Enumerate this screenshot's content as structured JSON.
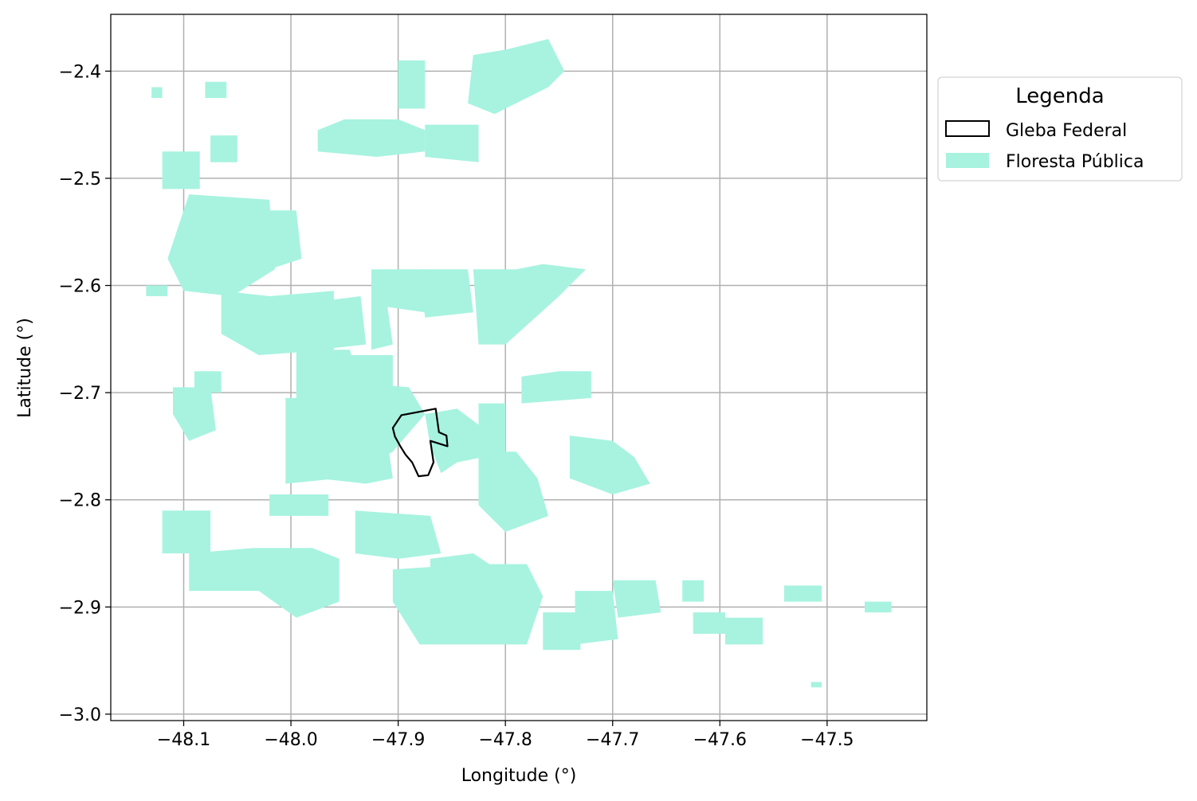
{
  "map": {
    "xlabel": "Longitude (°)",
    "ylabel": "Latitude (°)",
    "xlim": [
      -48.168,
      -47.407
    ],
    "ylim": [
      -3.006,
      -2.347
    ],
    "grid": true,
    "xticks": [
      -48.1,
      -48.0,
      -47.9,
      -47.8,
      -47.7,
      -47.6,
      -47.5
    ],
    "xtick_labels": [
      "−48.1",
      "−48.0",
      "−47.9",
      "−47.8",
      "−47.7",
      "−47.6",
      "−47.5"
    ],
    "yticks": [
      -2.4,
      -2.5,
      -2.6,
      -2.7,
      -2.8,
      -2.9,
      -3.0
    ],
    "ytick_labels": [
      "−2.4",
      "−2.5",
      "−2.6",
      "−2.7",
      "−2.8",
      "−2.9",
      "−3.0"
    ]
  },
  "legend": {
    "title": "Legenda",
    "placement": "outside-upper-right",
    "items": [
      {
        "label": "Gleba Federal",
        "style": "outline",
        "color": "#000000"
      },
      {
        "label": "Floresta Pública",
        "style": "fill",
        "color": "#a7f3e0"
      }
    ]
  },
  "layers": [
    {
      "name": "Floresta Pública",
      "fill": "#a7f3e0",
      "polygons": [
        [
          [
            -47.9,
            -2.39
          ],
          [
            -47.875,
            -2.39
          ],
          [
            -47.875,
            -2.435
          ],
          [
            -47.9,
            -2.435
          ]
        ],
        [
          [
            -47.83,
            -2.385
          ],
          [
            -47.8,
            -2.38
          ],
          [
            -47.76,
            -2.37
          ],
          [
            -47.745,
            -2.4
          ],
          [
            -47.76,
            -2.415
          ],
          [
            -47.81,
            -2.44
          ],
          [
            -47.835,
            -2.43
          ]
        ],
        [
          [
            -47.95,
            -2.445
          ],
          [
            -47.9,
            -2.445
          ],
          [
            -47.875,
            -2.455
          ],
          [
            -47.875,
            -2.475
          ],
          [
            -47.92,
            -2.48
          ],
          [
            -47.975,
            -2.475
          ],
          [
            -47.975,
            -2.455
          ]
        ],
        [
          [
            -47.875,
            -2.45
          ],
          [
            -47.825,
            -2.45
          ],
          [
            -47.825,
            -2.485
          ],
          [
            -47.875,
            -2.48
          ]
        ],
        [
          [
            -48.12,
            -2.475
          ],
          [
            -48.085,
            -2.475
          ],
          [
            -48.085,
            -2.51
          ],
          [
            -48.12,
            -2.51
          ]
        ],
        [
          [
            -48.075,
            -2.46
          ],
          [
            -48.05,
            -2.46
          ],
          [
            -48.05,
            -2.485
          ],
          [
            -48.075,
            -2.485
          ]
        ],
        [
          [
            -48.095,
            -2.515
          ],
          [
            -48.02,
            -2.52
          ],
          [
            -48.015,
            -2.585
          ],
          [
            -48.055,
            -2.61
          ],
          [
            -48.1,
            -2.605
          ],
          [
            -48.115,
            -2.575
          ]
        ],
        [
          [
            -48.025,
            -2.53
          ],
          [
            -47.995,
            -2.53
          ],
          [
            -47.99,
            -2.575
          ],
          [
            -48.02,
            -2.585
          ]
        ],
        [
          [
            -48.065,
            -2.605
          ],
          [
            -48.02,
            -2.61
          ],
          [
            -47.96,
            -2.605
          ],
          [
            -47.96,
            -2.66
          ],
          [
            -48.03,
            -2.665
          ],
          [
            -48.065,
            -2.645
          ]
        ],
        [
          [
            -47.975,
            -2.615
          ],
          [
            -47.935,
            -2.61
          ],
          [
            -47.93,
            -2.655
          ],
          [
            -47.975,
            -2.66
          ]
        ],
        [
          [
            -47.955,
            -2.665
          ],
          [
            -47.905,
            -2.665
          ],
          [
            -47.905,
            -2.71
          ],
          [
            -47.955,
            -2.715
          ]
        ],
        [
          [
            -47.925,
            -2.585
          ],
          [
            -47.875,
            -2.585
          ],
          [
            -47.875,
            -2.625
          ],
          [
            -47.91,
            -2.62
          ],
          [
            -47.905,
            -2.655
          ],
          [
            -47.925,
            -2.66
          ]
        ],
        [
          [
            -47.88,
            -2.585
          ],
          [
            -47.835,
            -2.585
          ],
          [
            -47.83,
            -2.625
          ],
          [
            -47.875,
            -2.63
          ]
        ],
        [
          [
            -47.83,
            -2.585
          ],
          [
            -47.79,
            -2.585
          ],
          [
            -47.765,
            -2.58
          ],
          [
            -47.725,
            -2.585
          ],
          [
            -47.75,
            -2.61
          ],
          [
            -47.8,
            -2.655
          ],
          [
            -47.825,
            -2.655
          ]
        ],
        [
          [
            -47.995,
            -2.66
          ],
          [
            -47.945,
            -2.66
          ],
          [
            -47.935,
            -2.7
          ],
          [
            -47.945,
            -2.745
          ],
          [
            -47.995,
            -2.745
          ]
        ],
        [
          [
            -47.945,
            -2.69
          ],
          [
            -47.89,
            -2.695
          ],
          [
            -47.875,
            -2.72
          ],
          [
            -47.905,
            -2.755
          ],
          [
            -47.94,
            -2.775
          ],
          [
            -47.945,
            -2.73
          ]
        ],
        [
          [
            -47.875,
            -2.72
          ],
          [
            -47.845,
            -2.715
          ],
          [
            -47.825,
            -2.73
          ],
          [
            -47.82,
            -2.76
          ],
          [
            -47.845,
            -2.765
          ],
          [
            -47.86,
            -2.775
          ],
          [
            -47.87,
            -2.75
          ]
        ],
        [
          [
            -47.825,
            -2.71
          ],
          [
            -47.8,
            -2.71
          ],
          [
            -47.8,
            -2.765
          ],
          [
            -47.825,
            -2.765
          ]
        ],
        [
          [
            -47.785,
            -2.685
          ],
          [
            -47.75,
            -2.68
          ],
          [
            -47.72,
            -2.68
          ],
          [
            -47.72,
            -2.705
          ],
          [
            -47.785,
            -2.71
          ]
        ],
        [
          [
            -48.11,
            -2.695
          ],
          [
            -48.075,
            -2.695
          ],
          [
            -48.07,
            -2.735
          ],
          [
            -48.095,
            -2.745
          ],
          [
            -48.11,
            -2.72
          ]
        ],
        [
          [
            -48.09,
            -2.68
          ],
          [
            -48.065,
            -2.68
          ],
          [
            -48.065,
            -2.7
          ],
          [
            -48.09,
            -2.7
          ]
        ],
        [
          [
            -48.005,
            -2.705
          ],
          [
            -47.955,
            -2.705
          ],
          [
            -47.935,
            -2.73
          ],
          [
            -47.935,
            -2.76
          ],
          [
            -47.955,
            -2.78
          ],
          [
            -48.005,
            -2.785
          ]
        ],
        [
          [
            -47.975,
            -2.73
          ],
          [
            -47.935,
            -2.73
          ],
          [
            -47.91,
            -2.745
          ],
          [
            -47.905,
            -2.78
          ],
          [
            -47.93,
            -2.785
          ],
          [
            -47.975,
            -2.78
          ]
        ],
        [
          [
            -47.825,
            -2.755
          ],
          [
            -47.79,
            -2.755
          ],
          [
            -47.77,
            -2.78
          ],
          [
            -47.76,
            -2.815
          ],
          [
            -47.8,
            -2.83
          ],
          [
            -47.825,
            -2.805
          ]
        ],
        [
          [
            -47.74,
            -2.74
          ],
          [
            -47.7,
            -2.745
          ],
          [
            -47.68,
            -2.76
          ],
          [
            -47.665,
            -2.785
          ],
          [
            -47.7,
            -2.795
          ],
          [
            -47.74,
            -2.78
          ]
        ],
        [
          [
            -48.02,
            -2.795
          ],
          [
            -47.965,
            -2.795
          ],
          [
            -47.965,
            -2.815
          ],
          [
            -48.02,
            -2.815
          ]
        ],
        [
          [
            -48.12,
            -2.81
          ],
          [
            -48.075,
            -2.81
          ],
          [
            -48.075,
            -2.85
          ],
          [
            -48.12,
            -2.85
          ]
        ],
        [
          [
            -47.94,
            -2.81
          ],
          [
            -47.87,
            -2.815
          ],
          [
            -47.86,
            -2.85
          ],
          [
            -47.9,
            -2.855
          ],
          [
            -47.94,
            -2.85
          ]
        ],
        [
          [
            -48.095,
            -2.85
          ],
          [
            -48.035,
            -2.845
          ],
          [
            -47.98,
            -2.845
          ],
          [
            -47.955,
            -2.855
          ],
          [
            -47.955,
            -2.895
          ],
          [
            -47.995,
            -2.91
          ],
          [
            -48.03,
            -2.885
          ],
          [
            -48.095,
            -2.885
          ]
        ],
        [
          [
            -47.905,
            -2.865
          ],
          [
            -47.83,
            -2.86
          ],
          [
            -47.78,
            -2.86
          ],
          [
            -47.765,
            -2.89
          ],
          [
            -47.78,
            -2.935
          ],
          [
            -47.835,
            -2.935
          ],
          [
            -47.88,
            -2.935
          ],
          [
            -47.905,
            -2.895
          ]
        ],
        [
          [
            -47.87,
            -2.855
          ],
          [
            -47.83,
            -2.85
          ],
          [
            -47.815,
            -2.86
          ],
          [
            -47.83,
            -2.875
          ],
          [
            -47.87,
            -2.875
          ]
        ],
        [
          [
            -47.735,
            -2.885
          ],
          [
            -47.7,
            -2.885
          ],
          [
            -47.695,
            -2.93
          ],
          [
            -47.735,
            -2.935
          ]
        ],
        [
          [
            -47.765,
            -2.905
          ],
          [
            -47.73,
            -2.905
          ],
          [
            -47.73,
            -2.94
          ],
          [
            -47.765,
            -2.94
          ]
        ],
        [
          [
            -47.7,
            -2.875
          ],
          [
            -47.66,
            -2.875
          ],
          [
            -47.655,
            -2.905
          ],
          [
            -47.695,
            -2.91
          ]
        ],
        [
          [
            -47.635,
            -2.875
          ],
          [
            -47.615,
            -2.875
          ],
          [
            -47.615,
            -2.895
          ],
          [
            -47.635,
            -2.895
          ]
        ],
        [
          [
            -47.625,
            -2.905
          ],
          [
            -47.595,
            -2.905
          ],
          [
            -47.595,
            -2.925
          ],
          [
            -47.625,
            -2.925
          ]
        ],
        [
          [
            -47.595,
            -2.91
          ],
          [
            -47.56,
            -2.91
          ],
          [
            -47.56,
            -2.935
          ],
          [
            -47.595,
            -2.935
          ]
        ],
        [
          [
            -47.54,
            -2.88
          ],
          [
            -47.505,
            -2.88
          ],
          [
            -47.505,
            -2.895
          ],
          [
            -47.54,
            -2.895
          ]
        ],
        [
          [
            -47.465,
            -2.895
          ],
          [
            -47.44,
            -2.895
          ],
          [
            -47.44,
            -2.905
          ],
          [
            -47.465,
            -2.905
          ]
        ],
        [
          [
            -47.515,
            -2.97
          ],
          [
            -47.505,
            -2.97
          ],
          [
            -47.505,
            -2.975
          ],
          [
            -47.515,
            -2.975
          ]
        ],
        [
          [
            -48.13,
            -2.415
          ],
          [
            -48.12,
            -2.415
          ],
          [
            -48.12,
            -2.425
          ],
          [
            -48.13,
            -2.425
          ]
        ],
        [
          [
            -48.08,
            -2.41
          ],
          [
            -48.06,
            -2.41
          ],
          [
            -48.06,
            -2.425
          ],
          [
            -48.08,
            -2.425
          ]
        ],
        [
          [
            -48.135,
            -2.6
          ],
          [
            -48.115,
            -2.6
          ],
          [
            -48.115,
            -2.61
          ],
          [
            -48.135,
            -2.61
          ]
        ]
      ]
    },
    {
      "name": "Gleba Federal",
      "stroke": "#000000",
      "polygons": [
        [
          [
            -47.897,
            -2.721
          ],
          [
            -47.865,
            -2.715
          ],
          [
            -47.862,
            -2.737
          ],
          [
            -47.855,
            -2.74
          ],
          [
            -47.854,
            -2.75
          ],
          [
            -47.87,
            -2.745
          ],
          [
            -47.867,
            -2.765
          ],
          [
            -47.872,
            -2.777
          ],
          [
            -47.881,
            -2.778
          ],
          [
            -47.887,
            -2.765
          ],
          [
            -47.893,
            -2.758
          ],
          [
            -47.898,
            -2.75
          ],
          [
            -47.903,
            -2.741
          ],
          [
            -47.905,
            -2.733
          ]
        ]
      ]
    }
  ]
}
